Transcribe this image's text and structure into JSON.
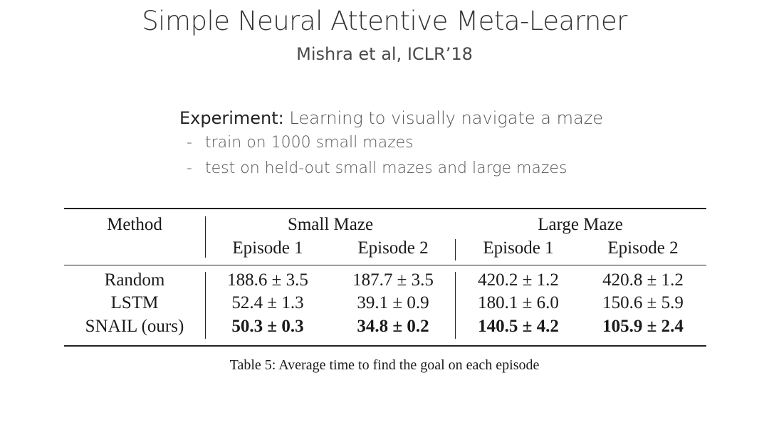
{
  "slide": {
    "title": "Simple Neural Attentive Meta-Learner",
    "subtitle": "Mishra et al, ICLR’18",
    "experiment_label": "Experiment:",
    "experiment_desc": " Learning to visually navigate a maze",
    "bullets": [
      "train on 1000 small mazes",
      "test on held-out small mazes and large mazes"
    ],
    "bullet_marker": "-"
  },
  "table": {
    "header_method": "Method",
    "group_small": "Small Maze",
    "group_large": "Large Maze",
    "episode_1": "Episode 1",
    "episode_2": "Episode 2",
    "rows": [
      {
        "method": "Random",
        "values": [
          "188.6 ± 3.5",
          "187.7 ± 3.5",
          "420.2 ± 1.2",
          "420.8 ± 1.2"
        ],
        "bold": false
      },
      {
        "method": "LSTM",
        "values": [
          "52.4 ± 1.3",
          "39.1 ± 0.9",
          "180.1 ± 6.0",
          "150.6 ± 5.9"
        ],
        "bold": false
      },
      {
        "method": "SNAIL (ours)",
        "values": [
          "50.3 ± 0.3",
          "34.8 ± 0.2",
          "140.5 ± 4.2",
          "105.9 ± 2.4"
        ],
        "bold": true
      }
    ],
    "caption": "Table 5:  Average time to find the goal on each episode"
  }
}
